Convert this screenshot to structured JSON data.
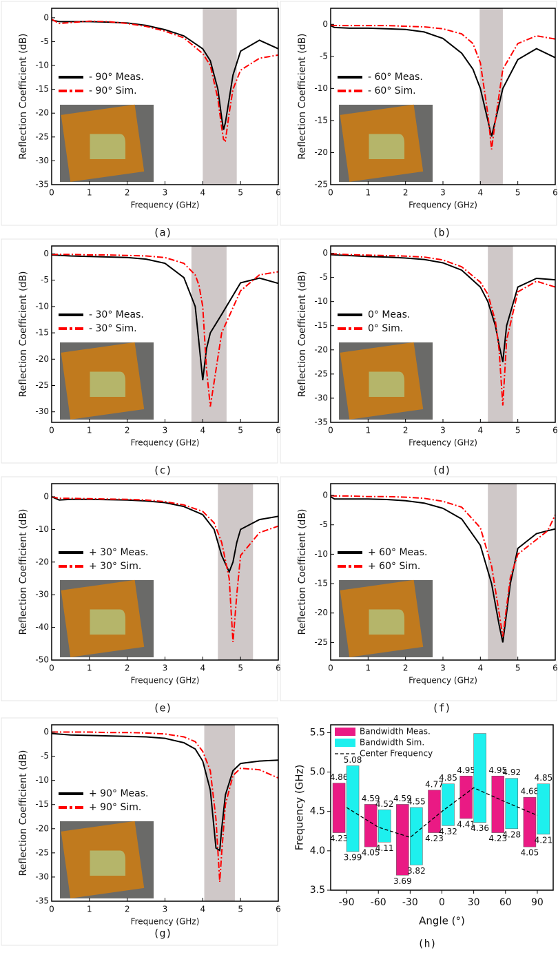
{
  "chart_data": [
    {
      "type": "line",
      "caption": "(a)",
      "xlabel": "Frequency (GHz)",
      "ylabel": "Reflection Coefficient (dB)",
      "xlim": [
        0,
        6
      ],
      "xticks": [
        0,
        1,
        2,
        3,
        4,
        5,
        6
      ],
      "ylim": [
        -35,
        2
      ],
      "yticks": [
        0,
        -5,
        -10,
        -15,
        -20,
        -25,
        -30,
        -35
      ],
      "band": [
        4.0,
        4.9
      ],
      "band_color": "#cfc8c8",
      "x": [
        0,
        0.2,
        0.5,
        1,
        1.5,
        2,
        2.5,
        3,
        3.5,
        4,
        4.2,
        4.4,
        4.5,
        4.55,
        4.6,
        4.7,
        4.8,
        5,
        5.5,
        6
      ],
      "series": [
        {
          "name": "- 90° Meas.",
          "color": "#000000",
          "dash": "solid",
          "values": [
            -0.5,
            -0.8,
            -0.8,
            -0.8,
            -0.9,
            -1.1,
            -1.6,
            -2.5,
            -3.8,
            -6.5,
            -9,
            -15,
            -21,
            -23.5,
            -22,
            -17,
            -12,
            -7,
            -4.7,
            -6.5
          ]
        },
        {
          "name": "- 90° Sim.",
          "color": "#ff0000",
          "dash": "dashdot",
          "values": [
            -0.3,
            -1.2,
            -1,
            -0.7,
            -0.8,
            -1.2,
            -1.8,
            -2.8,
            -4.2,
            -7.5,
            -10,
            -17,
            -23,
            -25.5,
            -25.8,
            -20,
            -15,
            -11,
            -8.5,
            -7.8
          ]
        }
      ]
    },
    {
      "type": "line",
      "caption": "(b)",
      "xlabel": "Frequency (GHz)",
      "ylabel": "Reflection Coefficient (dB)",
      "xlim": [
        0,
        6
      ],
      "xticks": [
        0,
        1,
        2,
        3,
        4,
        5,
        6
      ],
      "ylim": [
        -25,
        2.5
      ],
      "yticks": [
        0,
        -5,
        -10,
        -15,
        -20,
        -25
      ],
      "band": [
        3.98,
        4.6
      ],
      "band_color": "#cfc8c8",
      "x": [
        0,
        0.1,
        0.5,
        1,
        1.5,
        2,
        2.5,
        3,
        3.5,
        3.8,
        4,
        4.2,
        4.3,
        4.4,
        4.6,
        5,
        5.5,
        6
      ],
      "series": [
        {
          "name": "- 60° Meas.",
          "color": "#000000",
          "dash": "solid",
          "values": [
            -0.2,
            -0.5,
            -0.6,
            -0.6,
            -0.7,
            -0.8,
            -1.2,
            -2.2,
            -4.5,
            -7,
            -10,
            -15,
            -17.5,
            -15,
            -10,
            -5.5,
            -3.8,
            -5.2
          ]
        },
        {
          "name": "- 60° Sim.",
          "color": "#ff0000",
          "dash": "dashdot",
          "values": [
            -0.1,
            -0.2,
            -0.2,
            -0.2,
            -0.2,
            -0.3,
            -0.4,
            -0.7,
            -1.5,
            -3,
            -6,
            -14,
            -19.5,
            -15,
            -7,
            -3,
            -1.8,
            -2.3
          ]
        }
      ]
    },
    {
      "type": "line",
      "caption": "(c)",
      "xlabel": "Frequency (GHz)",
      "ylabel": "Reflection Coefficient (dB)",
      "xlim": [
        0,
        6
      ],
      "xticks": [
        0,
        1,
        2,
        3,
        4,
        5,
        6
      ],
      "ylim": [
        -32,
        1.5
      ],
      "yticks": [
        0,
        -5,
        -10,
        -15,
        -20,
        -25,
        -30
      ],
      "band": [
        3.7,
        4.63
      ],
      "band_color": "#cfc8c8",
      "x": [
        0,
        0.5,
        1,
        1.5,
        2,
        2.5,
        3,
        3.5,
        3.8,
        3.9,
        4,
        4.1,
        4.2,
        4.5,
        5,
        5.5,
        6
      ],
      "series": [
        {
          "name": "- 30° Meas.",
          "color": "#000000",
          "dash": "solid",
          "values": [
            -0.2,
            -0.4,
            -0.5,
            -0.6,
            -0.7,
            -1,
            -1.8,
            -4.5,
            -10,
            -17,
            -24,
            -18,
            -15,
            -11.5,
            -5.5,
            -4.6,
            -5.6
          ]
        },
        {
          "name": "- 30° Sim.",
          "color": "#ff0000",
          "dash": "dashdot",
          "values": [
            -0.1,
            -0.1,
            -0.2,
            -0.2,
            -0.3,
            -0.4,
            -0.7,
            -1.8,
            -4,
            -6,
            -10,
            -22,
            -29,
            -15,
            -7,
            -4,
            -3.4
          ]
        }
      ]
    },
    {
      "type": "line",
      "caption": "(d)",
      "xlabel": "Frequency (GHz)",
      "ylabel": "Reflection Coefficient (dB)",
      "xlim": [
        0,
        6
      ],
      "xticks": [
        0,
        1,
        2,
        3,
        4,
        5,
        6
      ],
      "ylim": [
        -35,
        1.5
      ],
      "yticks": [
        0,
        -5,
        -10,
        -15,
        -20,
        -25,
        -30,
        -35
      ],
      "band": [
        4.2,
        4.87
      ],
      "band_color": "#cfc8c8",
      "x": [
        0,
        0.5,
        1,
        1.5,
        2,
        2.5,
        3,
        3.5,
        4,
        4.2,
        4.4,
        4.5,
        4.6,
        4.7,
        5,
        5.5,
        6
      ],
      "series": [
        {
          "name": "0° Meas.",
          "color": "#000000",
          "dash": "solid",
          "values": [
            -0.3,
            -0.5,
            -0.7,
            -0.8,
            -1,
            -1.3,
            -2,
            -3.5,
            -7,
            -10,
            -15,
            -19,
            -22.5,
            -15,
            -7,
            -5.2,
            -5.5
          ]
        },
        {
          "name": "0° Sim.",
          "color": "#ff0000",
          "dash": "dashdot",
          "values": [
            -0.1,
            -0.3,
            -0.4,
            -0.5,
            -0.6,
            -0.8,
            -1.4,
            -2.8,
            -6,
            -8.5,
            -14,
            -20,
            -31.5,
            -18,
            -8,
            -5.8,
            -7
          ]
        }
      ]
    },
    {
      "type": "line",
      "caption": "(e)",
      "xlabel": "Frequency (GHz)",
      "ylabel": "Reflection Coefficient (dB)",
      "xlim": [
        0,
        6
      ],
      "xticks": [
        0,
        1,
        2,
        3,
        4,
        5,
        6
      ],
      "ylim": [
        -50,
        4
      ],
      "yticks": [
        0,
        -10,
        -20,
        -30,
        -40,
        -50
      ],
      "band": [
        4.4,
        5.33
      ],
      "band_color": "#cfc8c8",
      "x": [
        0,
        0.2,
        0.5,
        1,
        1.5,
        2,
        2.5,
        3,
        3.5,
        4,
        4.3,
        4.5,
        4.7,
        4.8,
        4.9,
        5,
        5.5,
        6
      ],
      "series": [
        {
          "name": "+ 30° Meas.",
          "color": "#000000",
          "dash": "solid",
          "values": [
            0,
            -1,
            -0.8,
            -0.8,
            -0.9,
            -1,
            -1.3,
            -1.8,
            -3,
            -5.5,
            -10,
            -18,
            -23,
            -20,
            -14,
            -10,
            -7,
            -6
          ]
        },
        {
          "name": "+ 30° Sim.",
          "color": "#ff0000",
          "dash": "dashdot",
          "values": [
            0,
            -0.5,
            -0.5,
            -0.6,
            -0.7,
            -0.8,
            -1,
            -1.5,
            -2.5,
            -4.5,
            -8,
            -14,
            -25,
            -44.5,
            -30,
            -18,
            -11,
            -9
          ]
        }
      ]
    },
    {
      "type": "line",
      "caption": "(f)",
      "xlabel": "Frequency (GHz)",
      "ylabel": "Reflection Coefficient (dB)",
      "xlim": [
        0,
        6
      ],
      "xticks": [
        0,
        1,
        2,
        3,
        4,
        5,
        6
      ],
      "ylim": [
        -28,
        2
      ],
      "yticks": [
        0,
        -5,
        -10,
        -15,
        -20,
        -25
      ],
      "band": [
        4.2,
        4.97
      ],
      "band_color": "#cfc8c8",
      "x": [
        0,
        0.1,
        0.5,
        1,
        1.5,
        2,
        2.5,
        3,
        3.5,
        4,
        4.3,
        4.5,
        4.6,
        4.8,
        5,
        5.5,
        5.8,
        6
      ],
      "series": [
        {
          "name": "+ 60° Meas.",
          "color": "#000000",
          "dash": "solid",
          "values": [
            -0.2,
            -0.6,
            -0.6,
            -0.6,
            -0.7,
            -0.9,
            -1.3,
            -2.2,
            -4,
            -8.5,
            -15,
            -22,
            -25,
            -15,
            -9,
            -6.5,
            -6,
            -5.7
          ]
        },
        {
          "name": "+ 60° Sim.",
          "color": "#ff0000",
          "dash": "dashdot",
          "values": [
            0,
            -0.1,
            -0.1,
            -0.2,
            -0.2,
            -0.3,
            -0.5,
            -1,
            -2,
            -5.5,
            -12,
            -20,
            -24,
            -14,
            -10,
            -7.5,
            -6,
            -3.3
          ]
        }
      ]
    },
    {
      "type": "line",
      "caption": "(g)",
      "xlabel": "Frequency (GHz)",
      "ylabel": "Reflection Coefficient (dB)",
      "xlim": [
        0,
        6
      ],
      "xticks": [
        0,
        1,
        2,
        3,
        4,
        5,
        6
      ],
      "ylim": [
        -35,
        1.5
      ],
      "yticks": [
        0,
        -5,
        -10,
        -15,
        -20,
        -25,
        -30,
        -35
      ],
      "band": [
        4.04,
        4.85
      ],
      "band_color": "#cfc8c8",
      "x": [
        0,
        0.5,
        1,
        1.5,
        2,
        2.5,
        3,
        3.5,
        3.8,
        4,
        4.2,
        4.35,
        4.45,
        4.5,
        4.6,
        4.8,
        5,
        5.5,
        6
      ],
      "series": [
        {
          "name": "+ 90° Meas.",
          "color": "#000000",
          "dash": "solid",
          "values": [
            -0.3,
            -0.6,
            -0.7,
            -0.8,
            -0.9,
            -1,
            -1.3,
            -2.2,
            -3.5,
            -6,
            -12,
            -24,
            -24.5,
            -20,
            -13,
            -8,
            -6.5,
            -6,
            -5.8
          ]
        },
        {
          "name": "+ 90° Sim.",
          "color": "#ff0000",
          "dash": "dashdot",
          "values": [
            0,
            0,
            0,
            -0.1,
            -0.1,
            -0.2,
            -0.4,
            -1,
            -2,
            -4,
            -8,
            -18,
            -31,
            -25,
            -15,
            -9,
            -7.5,
            -7.8,
            -9.5
          ]
        }
      ]
    },
    {
      "type": "range-bar",
      "caption": "(h)",
      "xlabel": "Angle (°)",
      "ylabel": "Frequency (GHz)",
      "categories": [
        "-90",
        "-60",
        "-30",
        "0",
        "30",
        "60",
        "90"
      ],
      "ylim": [
        3.5,
        5.6
      ],
      "yticks": [
        3.5,
        {
          "value": 4,
          "label": "4.0"
        },
        4.5,
        {
          "value": 5,
          "label": "5.0"
        },
        5.5
      ],
      "series": [
        {
          "name": "Bandwidth Meas.",
          "color": "#ea1a84",
          "low": [
            4.23,
            4.05,
            3.69,
            4.23,
            4.41,
            4.23,
            4.05
          ],
          "high": [
            4.86,
            4.59,
            4.59,
            4.77,
            4.95,
            4.95,
            4.68
          ],
          "high_labels": [
            "4.86",
            "4.59",
            "4.59",
            "4.77",
            "4.95",
            "4.95",
            "4.68"
          ]
        },
        {
          "name": "Bandwidth Sim.",
          "color": "#1ef0ee",
          "low": [
            3.99,
            4.11,
            3.82,
            4.32,
            4.36,
            4.28,
            4.21
          ],
          "high": [
            5.08,
            4.52,
            4.55,
            4.85,
            5.49,
            4.92,
            4.85
          ],
          "high_labels": [
            "5.08",
            "4.52",
            "4.55",
            "4.85",
            null,
            "4.92",
            "4.85"
          ]
        }
      ],
      "line": {
        "name": "Center Frequency",
        "color": "#000000",
        "values": [
          4.55,
          4.3,
          4.17,
          4.5,
          4.8,
          4.62,
          4.45
        ]
      }
    }
  ]
}
